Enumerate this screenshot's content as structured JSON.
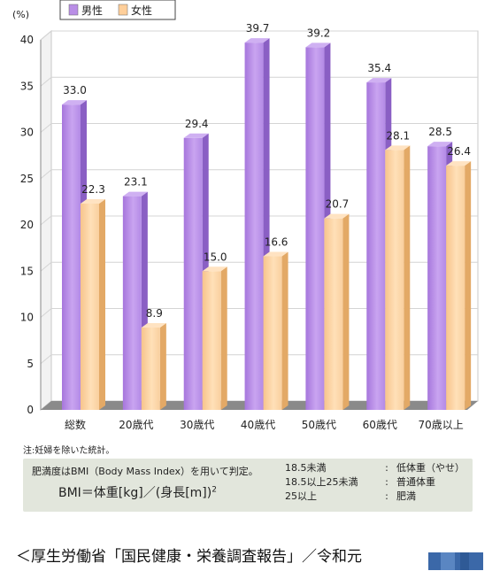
{
  "chart_data": {
    "type": "bar",
    "y_unit_label": "(%)",
    "categories": [
      "総数",
      "20歳代",
      "30歳代",
      "40歳代",
      "50歳代",
      "60歳代",
      "70歳以上"
    ],
    "series": [
      {
        "name": "男性",
        "color": "#b98ee6",
        "values": [
          33.0,
          23.1,
          29.4,
          39.7,
          39.2,
          35.4,
          28.5
        ]
      },
      {
        "name": "女性",
        "color": "#ffcf9a",
        "values": [
          22.3,
          8.9,
          15.0,
          16.6,
          20.7,
          28.1,
          26.4
        ]
      }
    ],
    "ylim": [
      0,
      40
    ],
    "yticks": [
      0,
      5,
      10,
      15,
      20,
      25,
      30,
      35,
      40
    ],
    "grid": true,
    "legend": "top-left"
  },
  "note": "注:妊婦を除いた統計。",
  "bmi": {
    "title": "肥満度はBMI（Body Mass Index）を用いて判定。",
    "formula": "BMI＝体重[kg]／(身長[m])",
    "exponent": "2",
    "table": [
      {
        "range": "18.5未満",
        "colon": ":",
        "label": "低体重（やせ）"
      },
      {
        "range": "18.5以上25未満",
        "colon": ":",
        "label": "普通体重"
      },
      {
        "range": "25以上",
        "colon": ":",
        "label": "肥満"
      }
    ]
  },
  "source": "＜厚生労働省「国民健康・栄養調査報告」／令和元"
}
